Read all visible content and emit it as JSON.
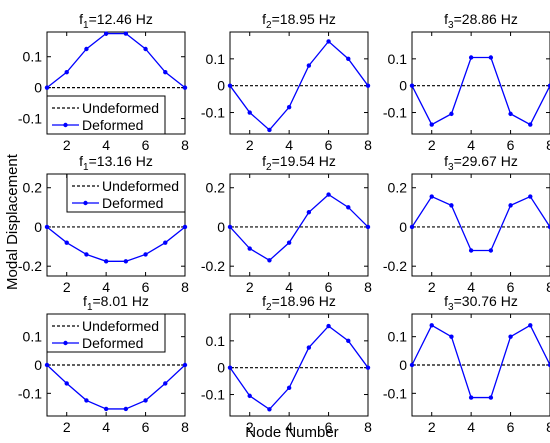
{
  "chart_data": {
    "type": "line",
    "xlabel": "Node Number",
    "ylabel": "Modal Displacement",
    "xlim": [
      1,
      8
    ],
    "x_ticks": [
      "2",
      "4",
      "6",
      "8"
    ],
    "legend": {
      "undeformed_label": "Undeformed",
      "deformed_label": "Deformed"
    },
    "colors": {
      "deformed": "#0000ff",
      "undeformed": "#000000"
    },
    "panels": [
      {
        "title_prefix": "f",
        "title_sub": "1",
        "title_value": "=12.46 Hz",
        "ylim": [
          -0.15,
          0.18
        ],
        "yticks": [
          -0.1,
          0,
          0.1
        ],
        "ytick_labels": [
          "-0.1",
          "0",
          "0.1"
        ],
        "legend": true,
        "legend_position": "bottom-left",
        "x": [
          1,
          2,
          3,
          4,
          5,
          6,
          7,
          8
        ],
        "values": [
          0,
          0.05,
          0.125,
          0.175,
          0.175,
          0.125,
          0.05,
          0
        ]
      },
      {
        "title_prefix": "f",
        "title_sub": "2",
        "title_value": "=18.95 Hz",
        "ylim": [
          -0.18,
          0.2
        ],
        "yticks": [
          -0.1,
          0,
          0.1
        ],
        "ytick_labels": [
          "-0.1",
          "0",
          "0.1"
        ],
        "legend": false,
        "x": [
          1,
          2,
          3,
          4,
          5,
          6,
          7,
          8
        ],
        "values": [
          0,
          -0.1,
          -0.165,
          -0.08,
          0.075,
          0.165,
          0.1,
          0
        ]
      },
      {
        "title_prefix": "f",
        "title_sub": "3",
        "title_value": "=28.86 Hz",
        "ylim": [
          -0.18,
          0.2
        ],
        "yticks": [
          -0.1,
          0,
          0.1
        ],
        "ytick_labels": [
          "-0.1",
          "0",
          "0.1"
        ],
        "legend": false,
        "x": [
          1,
          2,
          3,
          4,
          5,
          6,
          7,
          8
        ],
        "values": [
          0,
          -0.145,
          -0.105,
          0.105,
          0.105,
          -0.105,
          -0.145,
          0
        ]
      },
      {
        "title_prefix": "f",
        "title_sub": "1",
        "title_value": "=13.16 Hz",
        "ylim": [
          -0.25,
          0.27
        ],
        "yticks": [
          -0.2,
          0,
          0.2
        ],
        "ytick_labels": [
          "-0.2",
          "0",
          "0.2"
        ],
        "legend": true,
        "legend_position": "top-right",
        "x": [
          1,
          2,
          3,
          4,
          5,
          6,
          7,
          8
        ],
        "values": [
          0,
          -0.08,
          -0.14,
          -0.175,
          -0.175,
          -0.14,
          -0.08,
          0
        ]
      },
      {
        "title_prefix": "f",
        "title_sub": "2",
        "title_value": "=19.54 Hz",
        "ylim": [
          -0.25,
          0.27
        ],
        "yticks": [
          -0.2,
          0,
          0.2
        ],
        "ytick_labels": [
          "-0.2",
          "0",
          "0.2"
        ],
        "legend": false,
        "x": [
          1,
          2,
          3,
          4,
          5,
          6,
          7,
          8
        ],
        "values": [
          0,
          -0.11,
          -0.17,
          -0.08,
          0.075,
          0.165,
          0.1,
          0
        ]
      },
      {
        "title_prefix": "f",
        "title_sub": "3",
        "title_value": "=29.67 Hz",
        "ylim": [
          -0.25,
          0.27
        ],
        "yticks": [
          -0.2,
          0,
          0.2
        ],
        "ytick_labels": [
          "-0.2",
          "0",
          "0.2"
        ],
        "legend": false,
        "x": [
          1,
          2,
          3,
          4,
          5,
          6,
          7,
          8
        ],
        "values": [
          0,
          0.155,
          0.11,
          -0.12,
          -0.12,
          0.11,
          0.155,
          0
        ]
      },
      {
        "title_prefix": "f",
        "title_sub": "1",
        "title_value": "=8.01 Hz",
        "ylim": [
          -0.18,
          0.18
        ],
        "yticks": [
          -0.1,
          0,
          0.1
        ],
        "ytick_labels": [
          "-0.1",
          "0",
          "0.1"
        ],
        "legend": true,
        "legend_position": "top-left",
        "x": [
          1,
          2,
          3,
          4,
          5,
          6,
          7,
          8
        ],
        "values": [
          0,
          -0.065,
          -0.125,
          -0.155,
          -0.155,
          -0.125,
          -0.065,
          0
        ]
      },
      {
        "title_prefix": "f",
        "title_sub": "2",
        "title_value": "=18.96 Hz",
        "ylim": [
          -0.18,
          0.2
        ],
        "yticks": [
          -0.1,
          0,
          0.1
        ],
        "ytick_labels": [
          "-0.1",
          "0",
          "0.1"
        ],
        "legend": false,
        "x": [
          1,
          2,
          3,
          4,
          5,
          6,
          7,
          8
        ],
        "values": [
          0,
          -0.105,
          -0.155,
          -0.075,
          0.075,
          0.155,
          0.1,
          0
        ]
      },
      {
        "title_prefix": "f",
        "title_sub": "3",
        "title_value": "=30.76 Hz",
        "ylim": [
          -0.18,
          0.18
        ],
        "yticks": [
          -0.1,
          0,
          0.1
        ],
        "ytick_labels": [
          "-0.1",
          "0",
          "0.1"
        ],
        "legend": false,
        "x": [
          1,
          2,
          3,
          4,
          5,
          6,
          7,
          8
        ],
        "values": [
          0,
          0.14,
          0.1,
          -0.115,
          -0.115,
          0.1,
          0.14,
          0
        ]
      }
    ]
  }
}
